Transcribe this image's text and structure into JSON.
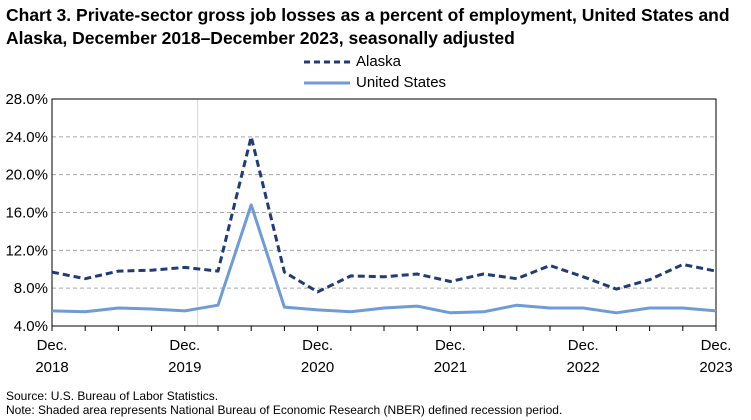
{
  "chart_data": {
    "type": "line",
    "title": "Chart 3. Private-sector gross job losses as a percent of employment, United States and Alaska, December 2018–December 2023, seasonally adjusted",
    "xlabel": "",
    "ylabel": "",
    "ylim": [
      4.0,
      28.0
    ],
    "yticks": [
      "28.0%",
      "24.0%",
      "20.0%",
      "16.0%",
      "12.0%",
      "8.0%",
      "4.0%"
    ],
    "ytick_values": [
      28,
      24,
      20,
      16,
      12,
      8,
      4
    ],
    "xtick_labels": [
      {
        "month": "Dec.",
        "year": "2018"
      },
      {
        "month": "Dec.",
        "year": "2019"
      },
      {
        "month": "Dec.",
        "year": "2020"
      },
      {
        "month": "Dec.",
        "year": "2021"
      },
      {
        "month": "Dec.",
        "year": "2022"
      },
      {
        "month": "Dec.",
        "year": "2023"
      }
    ],
    "x": [
      "Dec 2018",
      "Mar 2019",
      "Jun 2019",
      "Sep 2019",
      "Dec 2019",
      "Mar 2020",
      "Jun 2020",
      "Sep 2020",
      "Dec 2020",
      "Mar 2021",
      "Jun 2021",
      "Sep 2021",
      "Dec 2021",
      "Mar 2022",
      "Jun 2022",
      "Sep 2022",
      "Dec 2022",
      "Mar 2023",
      "Jun 2023",
      "Sep 2023",
      "Dec 2023"
    ],
    "grid": true,
    "legend_position": "top-center",
    "recession": {
      "start": "Dec 2019",
      "end": "Mar 2020",
      "color": "#d9d9d9"
    },
    "series": [
      {
        "name": "Alaska",
        "style": "dashed",
        "color": "#1f3c78",
        "values": [
          9.7,
          9.0,
          9.8,
          9.9,
          10.2,
          9.8,
          24.0,
          9.7,
          7.6,
          9.3,
          9.2,
          9.5,
          8.7,
          9.5,
          9.0,
          10.4,
          9.2,
          7.9,
          8.9,
          10.5,
          9.8
        ]
      },
      {
        "name": "United States",
        "style": "solid",
        "color": "#6f9bd8",
        "values": [
          5.6,
          5.5,
          5.9,
          5.8,
          5.6,
          6.2,
          16.8,
          6.0,
          5.7,
          5.5,
          5.9,
          6.1,
          5.4,
          5.5,
          6.2,
          5.9,
          5.9,
          5.4,
          5.9,
          5.9,
          5.6
        ]
      }
    ]
  },
  "footer": {
    "source": "Source: U.S. Bureau of Labor Statistics.",
    "note": "Note: Shaded area represents National Bureau of Economic Research (NBER) defined  recession period."
  }
}
